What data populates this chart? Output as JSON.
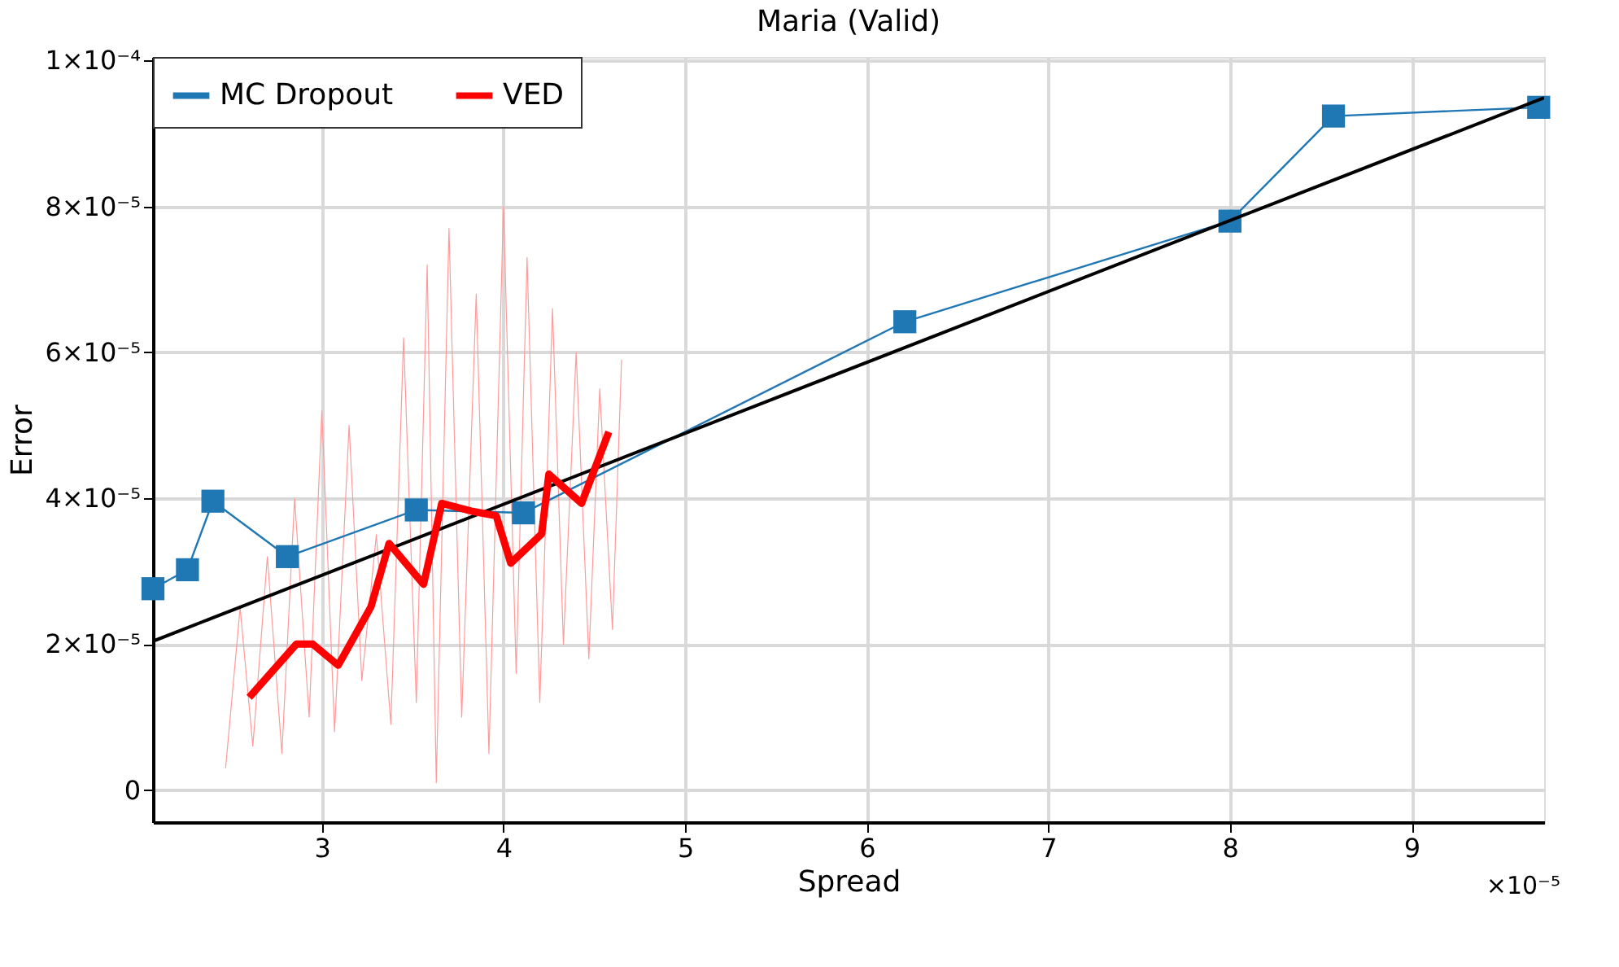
{
  "chart_data": {
    "type": "line",
    "title": "Maria (Valid)",
    "xlabel": "Spread",
    "ylabel": "Error",
    "xlim": [
      2.07,
      9.73
    ],
    "ylim": [
      -4.4e-06,
      0.0001005
    ],
    "xticks": [
      3,
      4,
      5,
      6,
      7,
      8,
      9
    ],
    "yticks": [
      0,
      {
        "value": 2e-05,
        "label": "2×10⁻⁵"
      },
      {
        "value": 4e-05,
        "label": "4×10⁻⁵"
      },
      {
        "value": 6e-05,
        "label": "6×10⁻⁵"
      },
      {
        "value": 8e-05,
        "label": "8×10⁻⁵"
      },
      {
        "value": 0.0001,
        "label": "1×10⁻⁴"
      }
    ],
    "grid": true,
    "legend": "top left",
    "line_style": "solid",
    "annotations": [
      "×10⁻⁵"
    ],
    "series": [
      {
        "color": "#ff9a9a",
        "marker": "none",
        "x": [
          2.47,
          2.55,
          2.62,
          2.7,
          2.78,
          2.85,
          2.93,
          3.0,
          3.07,
          3.15,
          3.22,
          3.3,
          3.38,
          3.45,
          3.52,
          3.58,
          3.63,
          3.7,
          3.77,
          3.85,
          3.92,
          4.0,
          4.07,
          4.13,
          4.2,
          4.27,
          4.33,
          4.4,
          4.47,
          4.53,
          4.6,
          4.65
        ],
        "values": [
          3e-06,
          2.5e-05,
          6e-06,
          3.2e-05,
          5e-06,
          4e-05,
          1e-05,
          5.2e-05,
          8e-06,
          5e-05,
          1.5e-05,
          3.5e-05,
          9e-06,
          6.2e-05,
          1.2e-05,
          7.2e-05,
          1e-06,
          7.7e-05,
          1e-05,
          6.8e-05,
          5e-06,
          8e-05,
          1.6e-05,
          7.3e-05,
          1.2e-05,
          6.6e-05,
          2e-05,
          6e-05,
          1.8e-05,
          5.5e-05,
          2.2e-05,
          5.9e-05
        ]
      },
      {
        "name": "MC Dropout",
        "color": "#1f77b4",
        "marker": "square",
        "x": [
          2.07,
          2.26,
          2.4,
          2.81,
          3.52,
          4.11,
          6.21,
          8.0,
          8.57,
          9.7
        ],
        "values": [
          2.76e-05,
          3.02e-05,
          3.96e-05,
          3.2e-05,
          3.84e-05,
          3.8e-05,
          6.42e-05,
          7.8e-05,
          9.24e-05,
          9.36e-05
        ]
      },
      {
        "color": "#000000",
        "marker": "none",
        "x": [
          2.07,
          9.73
        ],
        "values": [
          2.04e-05,
          9.49e-05
        ]
      },
      {
        "name": "VED",
        "color": "#ff0000",
        "marker": "none",
        "x": [
          2.6,
          2.86,
          2.95,
          3.09,
          3.27,
          3.37,
          3.56,
          3.66,
          3.83,
          3.96,
          4.04,
          4.21,
          4.25,
          4.43,
          4.58
        ],
        "values": [
          1.27e-05,
          2e-05,
          2e-05,
          1.71e-05,
          2.51e-05,
          3.38e-05,
          2.82e-05,
          3.93e-05,
          3.82e-05,
          3.76e-05,
          3.11e-05,
          3.51e-05,
          4.33e-05,
          3.93e-05,
          4.91e-05
        ]
      }
    ]
  }
}
